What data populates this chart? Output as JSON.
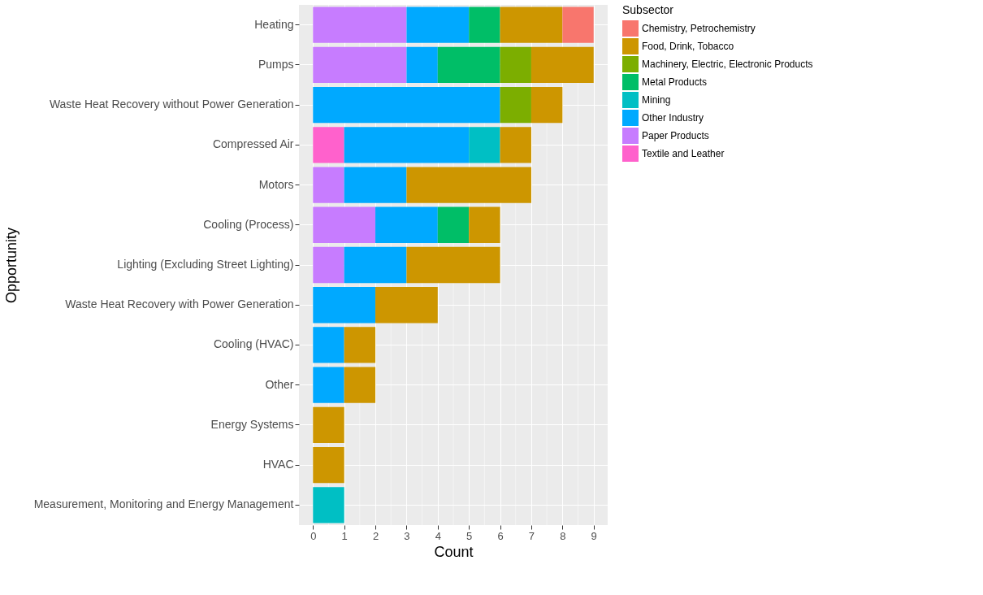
{
  "chart_data": {
    "type": "bar",
    "orientation": "horizontal",
    "stacked": true,
    "xlabel": "Count",
    "ylabel": "Opportunity",
    "legend_title": "Subsector",
    "legend": "right",
    "grid": true,
    "categories": [
      "Heating",
      "Pumps",
      "Waste Heat Recovery without Power Generation",
      "Compressed Air",
      "Motors",
      "Cooling (Process)",
      "Lighting (Excluding Street Lighting)",
      "Waste Heat Recovery with Power Generation",
      "Cooling (HVAC)",
      "Other",
      "Energy Systems",
      "HVAC",
      "Measurement, Monitoring and Energy Management"
    ],
    "xlim": [
      -0.45,
      9.45
    ],
    "xticks": [
      0,
      1,
      2,
      3,
      4,
      5,
      6,
      7,
      8,
      9
    ],
    "series": [
      {
        "name": "Textile and Leather",
        "color": "#ff61cc",
        "values": [
          null,
          null,
          null,
          1,
          null,
          null,
          null,
          null,
          null,
          null,
          null,
          null,
          null
        ]
      },
      {
        "name": "Paper Products",
        "color": "#c77cff",
        "values": [
          3,
          3,
          null,
          null,
          1,
          2,
          1,
          null,
          null,
          null,
          null,
          null,
          null
        ]
      },
      {
        "name": "Other Industry",
        "color": "#00a9ff",
        "values": [
          2,
          1,
          6,
          4,
          2,
          2,
          2,
          2,
          1,
          1,
          null,
          null,
          null
        ]
      },
      {
        "name": "Mining",
        "color": "#00bfc4",
        "values": [
          null,
          null,
          null,
          1,
          null,
          null,
          null,
          null,
          null,
          null,
          null,
          null,
          1
        ]
      },
      {
        "name": "Metal Products",
        "color": "#00be67",
        "values": [
          1,
          2,
          null,
          null,
          null,
          1,
          null,
          null,
          null,
          null,
          null,
          null,
          null
        ]
      },
      {
        "name": "Machinery, Electric, Electronic Products",
        "color": "#7cae00",
        "values": [
          null,
          1,
          1,
          null,
          null,
          null,
          null,
          null,
          null,
          null,
          null,
          null,
          null
        ]
      },
      {
        "name": "Food, Drink, Tobacco",
        "color": "#cd9600",
        "values": [
          2,
          2,
          1,
          1,
          4,
          1,
          3,
          2,
          1,
          1,
          1,
          1,
          null
        ]
      },
      {
        "name": "Chemistry, Petrochemistry",
        "color": "#f8766d",
        "values": [
          1,
          null,
          null,
          null,
          null,
          null,
          null,
          null,
          null,
          null,
          null,
          null,
          null
        ]
      }
    ]
  }
}
